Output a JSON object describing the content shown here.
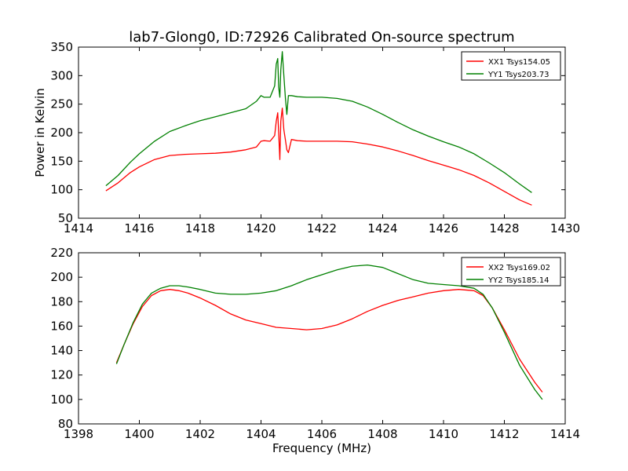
{
  "figure": {
    "title": "lab7-Glong0, ID:72926 Calibrated On-source spectrum"
  },
  "chart_data": [
    {
      "type": "line",
      "title": "lab7-Glong0, ID:72926 Calibrated On-source spectrum",
      "xlabel": "",
      "ylabel": "Power in Kelvin",
      "xlim": [
        1414,
        1430
      ],
      "ylim": [
        50,
        350
      ],
      "xticks": [
        1414,
        1416,
        1418,
        1420,
        1422,
        1424,
        1426,
        1428,
        1430
      ],
      "yticks": [
        50,
        100,
        150,
        200,
        250,
        300,
        350
      ],
      "grid": false,
      "legend": "top-right",
      "series": [
        {
          "name": "XX1 Tsys154.05",
          "color": "#ff0000",
          "x": [
            1414.9,
            1415.3,
            1415.7,
            1416.0,
            1416.5,
            1417.0,
            1417.5,
            1418.0,
            1418.5,
            1419.0,
            1419.5,
            1419.85,
            1420.0,
            1420.1,
            1420.3,
            1420.45,
            1420.5,
            1420.55,
            1420.58,
            1420.62,
            1420.65,
            1420.7,
            1420.75,
            1420.8,
            1420.85,
            1420.9,
            1421.0,
            1421.2,
            1421.5,
            1422.0,
            1422.5,
            1423.0,
            1423.5,
            1424.0,
            1424.5,
            1425.0,
            1425.5,
            1426.0,
            1426.5,
            1427.0,
            1427.5,
            1428.0,
            1428.5,
            1428.9
          ],
          "y": [
            98,
            112,
            130,
            140,
            153,
            160,
            162,
            163,
            164,
            166,
            170,
            175,
            185,
            186,
            185,
            195,
            220,
            235,
            200,
            153,
            220,
            243,
            205,
            188,
            170,
            165,
            188,
            186,
            185,
            185,
            185,
            184,
            180,
            175,
            168,
            160,
            151,
            143,
            135,
            125,
            112,
            97,
            82,
            73
          ]
        },
        {
          "name": "YY1 Tsys203.73",
          "color": "#008000",
          "x": [
            1414.9,
            1415.3,
            1415.7,
            1416.0,
            1416.5,
            1417.0,
            1417.5,
            1418.0,
            1418.5,
            1419.0,
            1419.5,
            1419.85,
            1420.0,
            1420.1,
            1420.3,
            1420.45,
            1420.5,
            1420.55,
            1420.58,
            1420.62,
            1420.65,
            1420.7,
            1420.75,
            1420.8,
            1420.85,
            1420.9,
            1421.0,
            1421.2,
            1421.5,
            1422.0,
            1422.5,
            1423.0,
            1423.5,
            1424.0,
            1424.5,
            1425.0,
            1425.5,
            1426.0,
            1426.5,
            1427.0,
            1427.5,
            1428.0,
            1428.5,
            1428.9
          ],
          "y": [
            107,
            125,
            148,
            163,
            185,
            202,
            212,
            221,
            228,
            235,
            242,
            255,
            265,
            262,
            262,
            282,
            320,
            330,
            280,
            262,
            310,
            342,
            300,
            262,
            232,
            265,
            265,
            263,
            262,
            262,
            260,
            255,
            245,
            232,
            218,
            205,
            194,
            184,
            175,
            163,
            147,
            130,
            110,
            95
          ]
        }
      ]
    },
    {
      "type": "line",
      "title": "",
      "xlabel": "Frequency (MHz)",
      "ylabel": "",
      "xlim": [
        1398,
        1414
      ],
      "ylim": [
        80,
        220
      ],
      "xticks": [
        1398,
        1400,
        1402,
        1404,
        1406,
        1408,
        1410,
        1412,
        1414
      ],
      "yticks": [
        80,
        100,
        120,
        140,
        160,
        180,
        200,
        220
      ],
      "grid": false,
      "legend": "top-right",
      "series": [
        {
          "name": "XX2 Tsys169.02",
          "color": "#ff0000",
          "x": [
            1399.25,
            1399.5,
            1399.8,
            1400.1,
            1400.4,
            1400.7,
            1401.0,
            1401.3,
            1401.6,
            1402.0,
            1402.5,
            1403.0,
            1403.5,
            1404.0,
            1404.5,
            1405.0,
            1405.5,
            1406.0,
            1406.5,
            1407.0,
            1407.5,
            1408.0,
            1408.5,
            1409.0,
            1409.5,
            1410.0,
            1410.5,
            1411.0,
            1411.3,
            1411.6,
            1412.0,
            1412.5,
            1413.0,
            1413.25
          ],
          "y": [
            130,
            145,
            162,
            176,
            185,
            189,
            190,
            189,
            187,
            183,
            177,
            170,
            165,
            162,
            159,
            158,
            157,
            158,
            161,
            166,
            172,
            177,
            181,
            184,
            187,
            189,
            190,
            189,
            185,
            175,
            157,
            133,
            114,
            106
          ]
        },
        {
          "name": "YY2 Tsys185.14",
          "color": "#008000",
          "x": [
            1399.25,
            1399.5,
            1399.8,
            1400.1,
            1400.4,
            1400.7,
            1401.0,
            1401.3,
            1401.6,
            1402.0,
            1402.5,
            1403.0,
            1403.5,
            1404.0,
            1404.5,
            1405.0,
            1405.5,
            1406.0,
            1406.5,
            1407.0,
            1407.5,
            1408.0,
            1408.5,
            1409.0,
            1409.5,
            1410.0,
            1410.5,
            1411.0,
            1411.3,
            1411.6,
            1412.0,
            1412.5,
            1413.0,
            1413.25
          ],
          "y": [
            129,
            145,
            163,
            178,
            187,
            191,
            193,
            193,
            192,
            190,
            187,
            186,
            186,
            187,
            189,
            193,
            198,
            202,
            206,
            209,
            210,
            208,
            203,
            198,
            195,
            194,
            193,
            191,
            186,
            175,
            155,
            128,
            108,
            100
          ]
        }
      ]
    }
  ]
}
